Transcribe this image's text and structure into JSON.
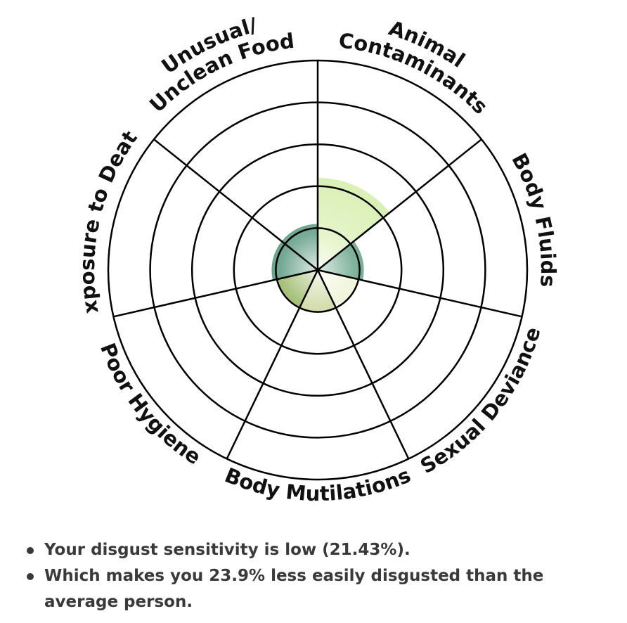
{
  "chart_data": {
    "type": "radar",
    "rings": 5,
    "max_value": 5,
    "categories": [
      {
        "lines": [
          "Animal",
          "Contaminants"
        ]
      },
      {
        "lines": [
          "Body Fluids"
        ]
      },
      {
        "lines": [
          "Sexual Deviance"
        ]
      },
      {
        "lines": [
          "Body Mutilations"
        ]
      },
      {
        "lines": [
          "Poor Hygiene"
        ]
      },
      {
        "lines": [
          "Exposure to Death"
        ]
      },
      {
        "lines": [
          "Unusual/",
          "Unclean Food"
        ]
      }
    ],
    "values": [
      2.2,
      1.1,
      1.0,
      1.0,
      1.0,
      1.1,
      1.1
    ],
    "sector_colors": [
      "#d7efaf",
      "#3c8a69",
      "#e9f0c9",
      "#bdcc84",
      "#7aa136",
      "#2b7b5c",
      "#2f7f60"
    ],
    "grid_color": "#000000"
  },
  "summary": {
    "items": [
      "Your disgust sensitivity is low (21.43%).",
      "Which makes you 23.9% less easily disgusted than the average person."
    ]
  }
}
